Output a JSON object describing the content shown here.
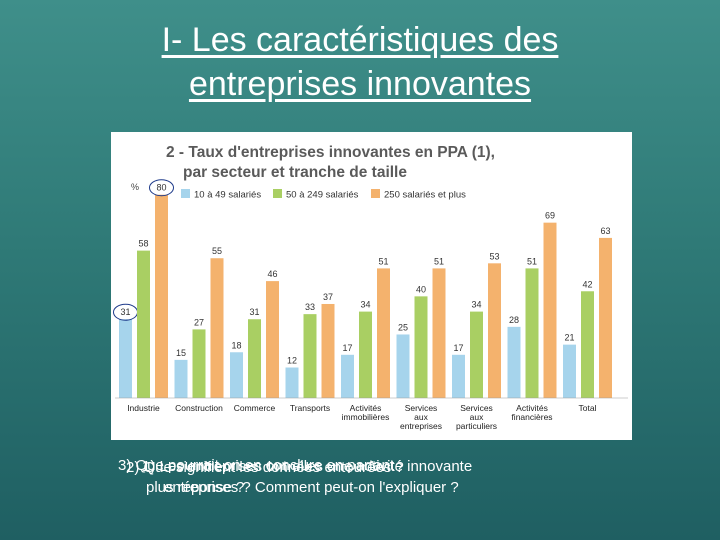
{
  "slide": {
    "title_line1": "I- Les caractéristiques des",
    "title_line2": "entreprises innovantes",
    "caption": [
      "3) Que pourrait-on en conclure en partant",
      "2) Que signifient les données entourées ?",
      "1) Les entreprises ont-elles une activité innovante",
      "plus réponse ?",
      "entreprises ? Comment peut-on l'expliquer ?"
    ]
  },
  "colors": {
    "small": "#a6d4ec",
    "medium": "#a9cf63",
    "large": "#f4b26d",
    "title_text": "#5a5a5a",
    "circle": "#1e3a8a"
  },
  "chart_data": {
    "type": "bar",
    "title_line1": "2 - Taux d'entreprises innovantes en PPA (1),",
    "title_line2": "par secteur et tranche de taille",
    "ylabel": "%",
    "ylim": [
      0,
      85
    ],
    "categories": [
      "Industrie",
      "Construction",
      "Commerce",
      "Transports",
      "Activités immobilières",
      "Services aux entreprises",
      "Services aux particuliers",
      "Activités financières",
      "Total"
    ],
    "category_lines": [
      [
        "Industrie"
      ],
      [
        "Construction"
      ],
      [
        "Commerce"
      ],
      [
        "Transports"
      ],
      [
        "Activités",
        "immobilières"
      ],
      [
        "Services",
        "aux",
        "entreprises"
      ],
      [
        "Services",
        "aux",
        "particuliers"
      ],
      [
        "Activités",
        "financières"
      ],
      [
        "Total"
      ]
    ],
    "series": [
      {
        "name": "10 à 49 salariés",
        "values": [
          31,
          15,
          18,
          12,
          17,
          25,
          17,
          28,
          21
        ]
      },
      {
        "name": "50 à 249 salariés",
        "values": [
          58,
          27,
          31,
          33,
          34,
          40,
          34,
          51,
          42
        ]
      },
      {
        "name": "250 salariés et plus",
        "values": [
          80,
          55,
          46,
          37,
          51,
          51,
          53,
          69,
          63
        ]
      }
    ],
    "circled": [
      {
        "series": 2,
        "category": 0
      },
      {
        "series": 0,
        "category": 0
      }
    ]
  }
}
